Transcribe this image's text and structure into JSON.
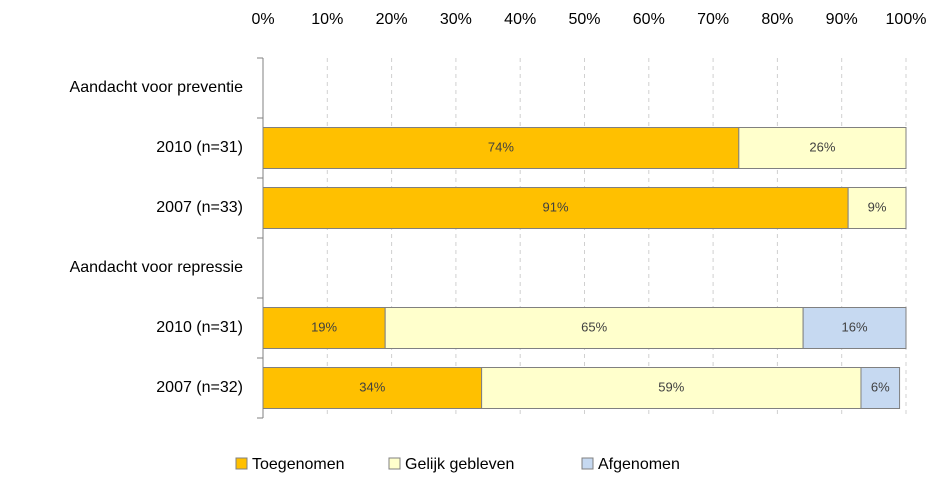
{
  "chart_data": {
    "type": "stacked_barh",
    "categories": [
      "Aandacht voor preventie",
      "2010 (n=31)",
      "2007 (n=33)",
      "Aandacht voor repressie",
      "2010 (n=31)",
      "2007 (n=32)"
    ],
    "series": [
      {
        "name": "Toegenomen",
        "color": "#FFC000",
        "values": [
          null,
          74,
          91,
          null,
          19,
          34
        ],
        "value_labels": [
          null,
          "74%",
          "91%",
          null,
          "19%",
          "34%"
        ]
      },
      {
        "name": "Gelijk gebleven",
        "color": "#FFFFCC",
        "values": [
          null,
          26,
          9,
          null,
          65,
          59
        ],
        "value_labels": [
          null,
          "26%",
          "9%",
          null,
          "65%",
          "59%"
        ]
      },
      {
        "name": "Afgenomen",
        "color": "#C6D9F1",
        "values": [
          null,
          null,
          null,
          null,
          16,
          6
        ],
        "value_labels": [
          null,
          null,
          null,
          null,
          "16%",
          "6%"
        ]
      }
    ],
    "xlim": [
      0,
      100
    ],
    "xticks": [
      {
        "value": 0,
        "label": "0%"
      },
      {
        "value": 10,
        "label": "10%"
      },
      {
        "value": 20,
        "label": "20%"
      },
      {
        "value": 30,
        "label": "30%"
      },
      {
        "value": 40,
        "label": "40%"
      },
      {
        "value": 50,
        "label": "50%"
      },
      {
        "value": 60,
        "label": "60%"
      },
      {
        "value": 70,
        "label": "70%"
      },
      {
        "value": 80,
        "label": "80%"
      },
      {
        "value": 90,
        "label": "90%"
      },
      {
        "value": 100,
        "label": "100%"
      }
    ],
    "grid": true,
    "legend": "bottom"
  }
}
